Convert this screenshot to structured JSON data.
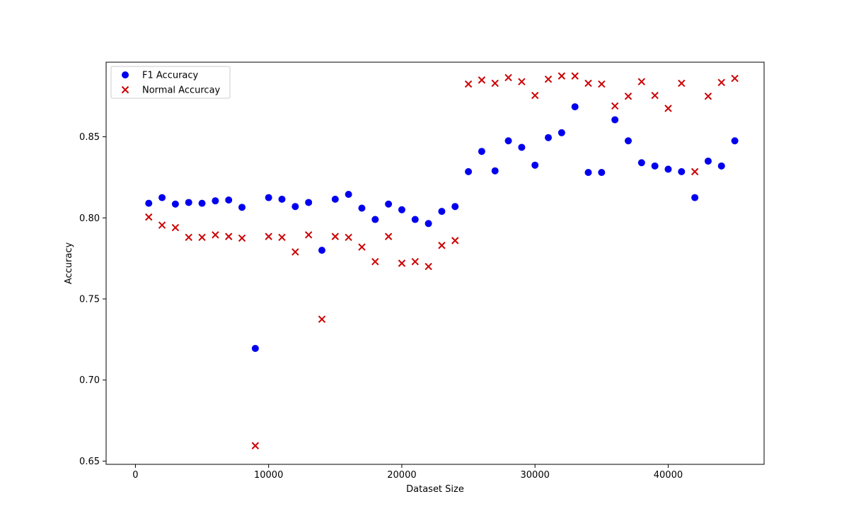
{
  "chart_data": {
    "type": "scatter",
    "xlabel": "Dataset Size",
    "ylabel": "Accuracy",
    "xlim": [
      -2200,
      47200
    ],
    "ylim": [
      0.648,
      0.896
    ],
    "xticks": [
      0,
      10000,
      20000,
      30000,
      40000
    ],
    "yticks": [
      0.65,
      0.7,
      0.75,
      0.8,
      0.85
    ],
    "ytick_labels": [
      "0.65",
      "0.70",
      "0.75",
      "0.80",
      "0.85"
    ],
    "legend_placement": "upper-left",
    "grid": false,
    "series": [
      {
        "name": "F1 Accuracy",
        "marker": "circle",
        "color": "#0000ee",
        "x": [
          1000,
          2000,
          3000,
          4000,
          5000,
          6000,
          7000,
          8000,
          9000,
          10000,
          11000,
          12000,
          13000,
          14000,
          15000,
          16000,
          17000,
          18000,
          19000,
          20000,
          21000,
          22000,
          23000,
          24000,
          25000,
          26000,
          27000,
          28000,
          29000,
          30000,
          31000,
          32000,
          33000,
          34000,
          35000,
          36000,
          37000,
          38000,
          39000,
          40000,
          41000,
          42000,
          43000,
          44000,
          45000
        ],
        "y": [
          0.809,
          0.8125,
          0.8085,
          0.8095,
          0.809,
          0.8105,
          0.811,
          0.8065,
          0.7195,
          0.8125,
          0.8115,
          0.807,
          0.8095,
          0.78,
          0.8115,
          0.8145,
          0.806,
          0.799,
          0.8085,
          0.805,
          0.799,
          0.7965,
          0.804,
          0.807,
          0.8285,
          0.841,
          0.829,
          0.8475,
          0.8435,
          0.8325,
          0.8495,
          0.8525,
          0.8685,
          0.828,
          0.828,
          0.8605,
          0.8475,
          0.834,
          0.832,
          0.83,
          0.8285,
          0.8125,
          0.835,
          0.832,
          0.8475
        ]
      },
      {
        "name": "Normal Accurcay",
        "marker": "x",
        "color": "#cc0000",
        "x": [
          1000,
          2000,
          3000,
          4000,
          5000,
          6000,
          7000,
          8000,
          9000,
          10000,
          11000,
          12000,
          13000,
          14000,
          15000,
          16000,
          17000,
          18000,
          19000,
          20000,
          21000,
          22000,
          23000,
          24000,
          25000,
          26000,
          27000,
          28000,
          29000,
          30000,
          31000,
          32000,
          33000,
          34000,
          35000,
          36000,
          37000,
          38000,
          39000,
          40000,
          41000,
          42000,
          43000,
          44000,
          45000
        ],
        "y": [
          0.8005,
          0.7955,
          0.794,
          0.788,
          0.788,
          0.7895,
          0.7885,
          0.7875,
          0.6595,
          0.7885,
          0.788,
          0.779,
          0.7895,
          0.7375,
          0.7885,
          0.788,
          0.782,
          0.773,
          0.7885,
          0.772,
          0.773,
          0.77,
          0.783,
          0.786,
          0.8825,
          0.885,
          0.883,
          0.8865,
          0.884,
          0.8755,
          0.8855,
          0.8875,
          0.8875,
          0.883,
          0.8825,
          0.869,
          0.875,
          0.884,
          0.8755,
          0.8675,
          0.883,
          0.8285,
          0.875,
          0.8835,
          0.886
        ]
      }
    ]
  }
}
